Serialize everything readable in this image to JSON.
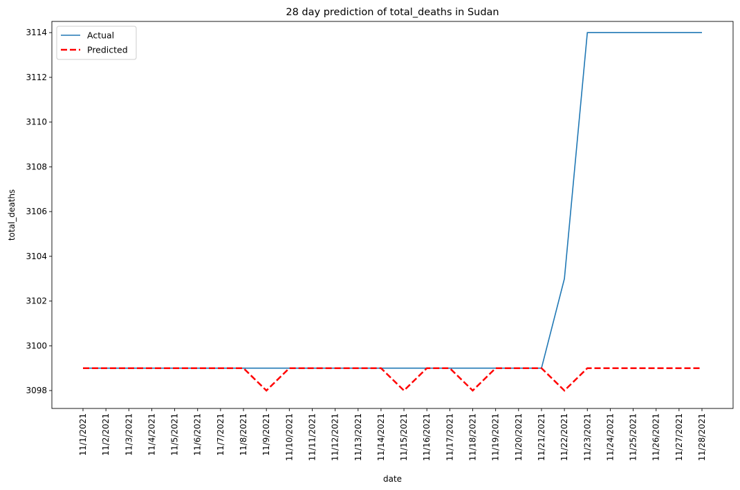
{
  "chart_data": {
    "type": "line",
    "title": "28 day prediction of total_deaths in Sudan",
    "xlabel": "date",
    "ylabel": "total_deaths",
    "x": [
      "11/1/2021",
      "11/2/2021",
      "11/3/2021",
      "11/4/2021",
      "11/5/2021",
      "11/6/2021",
      "11/7/2021",
      "11/8/2021",
      "11/9/2021",
      "11/10/2021",
      "11/11/2021",
      "11/12/2021",
      "11/13/2021",
      "11/14/2021",
      "11/15/2021",
      "11/16/2021",
      "11/17/2021",
      "11/18/2021",
      "11/19/2021",
      "11/20/2021",
      "11/21/2021",
      "11/22/2021",
      "11/23/2021",
      "11/24/2021",
      "11/25/2021",
      "11/26/2021",
      "11/27/2021",
      "11/28/2021"
    ],
    "ylim": [
      3097.2,
      3114.5
    ],
    "yticks": [
      3098,
      3100,
      3102,
      3104,
      3106,
      3108,
      3110,
      3112,
      3114
    ],
    "grid": false,
    "legend_position": "top-left",
    "series": [
      {
        "name": "Actual",
        "style": "solid",
        "color": "#1f77b4",
        "values": [
          3099,
          3099,
          3099,
          3099,
          3099,
          3099,
          3099,
          3099,
          3099,
          3099,
          3099,
          3099,
          3099,
          3099,
          3099,
          3099,
          3099,
          3099,
          3099,
          3099,
          3099,
          3103,
          3114,
          3114,
          3114,
          3114,
          3114,
          3114
        ]
      },
      {
        "name": "Predicted",
        "style": "dashed",
        "color": "#ff0000",
        "values": [
          3099,
          3099,
          3099,
          3099,
          3099,
          3099,
          3099,
          3099,
          3098,
          3099,
          3099,
          3099,
          3099,
          3099,
          3098,
          3099,
          3099,
          3098,
          3099,
          3099,
          3099,
          3098,
          3099,
          3099,
          3099,
          3099,
          3099,
          3099
        ]
      }
    ]
  }
}
